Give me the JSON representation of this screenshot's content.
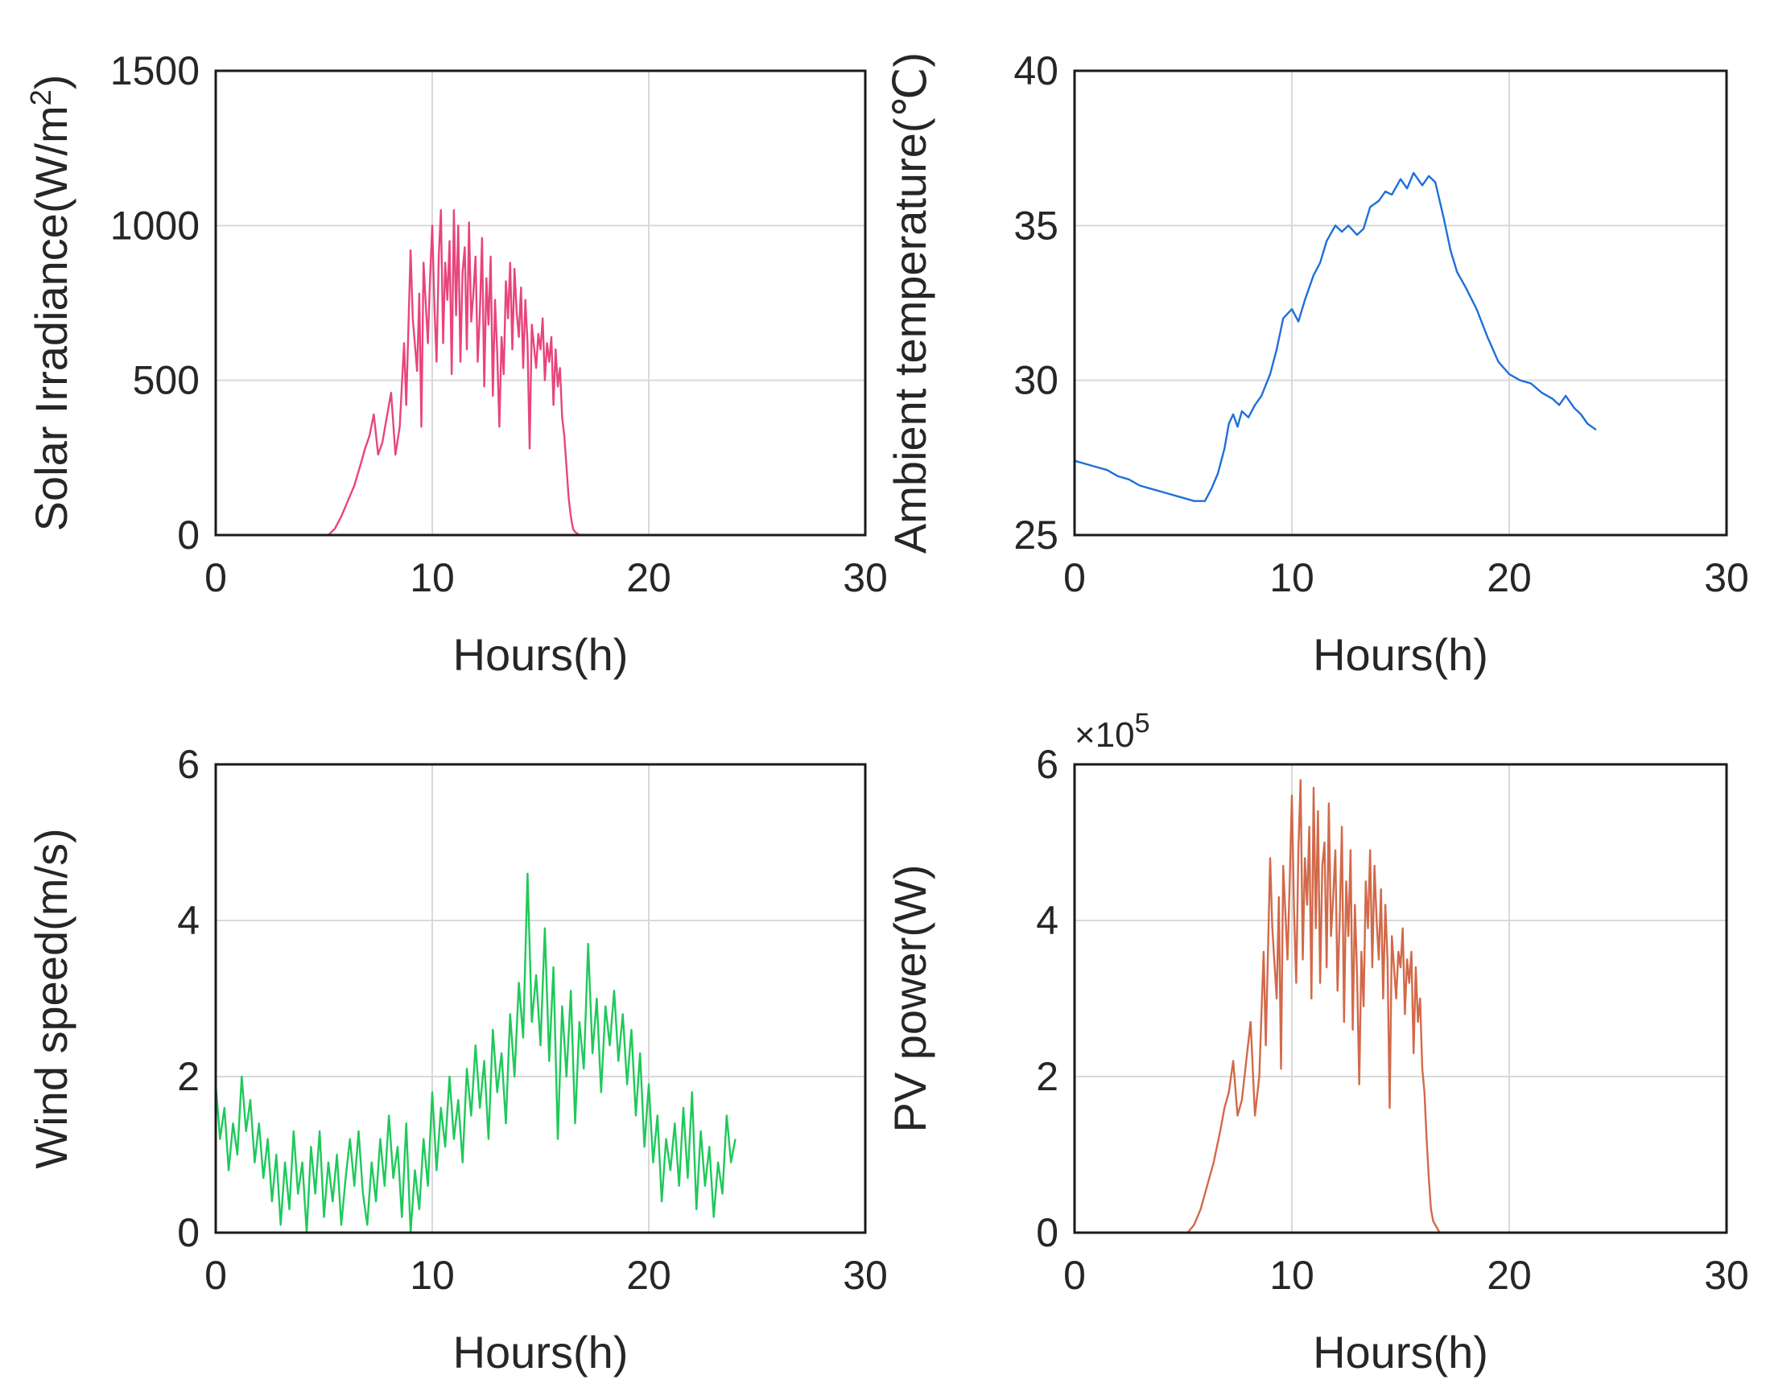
{
  "chart_data": [
    {
      "type": "line",
      "xlabel": "Hours(h)",
      "ylabel": "Solar Irradiance(W/m",
      "ylabel_sup": "2",
      "ylabel_close": ")",
      "xlim": [
        0,
        30
      ],
      "ylim": [
        0,
        1500
      ],
      "xticks": [
        0,
        10,
        20,
        30
      ],
      "yticks": [
        0,
        500,
        1000,
        1500
      ],
      "grid": true,
      "color": "#e8457a",
      "series": [
        {
          "name": "Solar Irradiance",
          "x": [
            0,
            5.2,
            5.5,
            5.8,
            6.1,
            6.4,
            6.7,
            6.9,
            7.1,
            7.3,
            7.5,
            7.7,
            7.9,
            8.1,
            8.3,
            8.5,
            8.7,
            8.8,
            9,
            9.1,
            9.3,
            9.4,
            9.5,
            9.6,
            9.8,
            9.9,
            10,
            10.1,
            10.2,
            10.3,
            10.4,
            10.5,
            10.6,
            10.7,
            10.8,
            10.9,
            11,
            11.1,
            11.2,
            11.3,
            11.4,
            11.5,
            11.6,
            11.7,
            11.8,
            11.9,
            12,
            12.1,
            12.2,
            12.3,
            12.4,
            12.5,
            12.6,
            12.7,
            12.8,
            12.9,
            13,
            13.1,
            13.2,
            13.3,
            13.4,
            13.5,
            13.6,
            13.7,
            13.8,
            13.9,
            14,
            14.1,
            14.2,
            14.3,
            14.4,
            14.5,
            14.6,
            14.8,
            14.9,
            15,
            15.1,
            15.2,
            15.3,
            15.4,
            15.5,
            15.6,
            15.7,
            15.8,
            15.9,
            16,
            16.1,
            16.2,
            16.3,
            16.4,
            16.5,
            16.6,
            16.7,
            16.8,
            16.9,
            17,
            17.1,
            17.3,
            17.5,
            17.7,
            18,
            18.3,
            19,
            24
          ],
          "y": [
            0,
            0,
            20,
            60,
            110,
            160,
            230,
            280,
            320,
            390,
            260,
            300,
            380,
            460,
            260,
            350,
            620,
            420,
            920,
            700,
            530,
            780,
            350,
            880,
            620,
            830,
            1000,
            740,
            560,
            900,
            1050,
            620,
            880,
            760,
            950,
            520,
            1050,
            710,
            1000,
            560,
            850,
            930,
            600,
            1010,
            690,
            780,
            900,
            560,
            720,
            960,
            480,
            830,
            680,
            900,
            450,
            760,
            590,
            350,
            640,
            520,
            820,
            700,
            880,
            600,
            860,
            720,
            640,
            800,
            540,
            760,
            620,
            280,
            680,
            540,
            650,
            600,
            700,
            500,
            620,
            560,
            640,
            420,
            600,
            480,
            540,
            380,
            320,
            220,
            120,
            60,
            20,
            10,
            5,
            0,
            0,
            0,
            0,
            0,
            0,
            0,
            0,
            0,
            0,
            0
          ]
        }
      ]
    },
    {
      "type": "line",
      "xlabel": "Hours(h)",
      "ylabel": "Ambient temperature(℃)",
      "xlim": [
        0,
        30
      ],
      "ylim": [
        25,
        40
      ],
      "xticks": [
        0,
        10,
        20,
        30
      ],
      "yticks": [
        25,
        30,
        35,
        40
      ],
      "grid": true,
      "color": "#1f6fd9",
      "series": [
        {
          "name": "Ambient temperature",
          "x": [
            0,
            0.5,
            1,
            1.5,
            2,
            2.5,
            3,
            3.5,
            4,
            4.5,
            5,
            5.5,
            6,
            6.3,
            6.6,
            6.9,
            7.1,
            7.3,
            7.5,
            7.7,
            8,
            8.3,
            8.6,
            9,
            9.3,
            9.6,
            10,
            10.3,
            10.6,
            11,
            11.3,
            11.6,
            12,
            12.3,
            12.6,
            13,
            13.3,
            13.6,
            14,
            14.3,
            14.6,
            15,
            15.3,
            15.6,
            16,
            16.3,
            16.6,
            17,
            17.3,
            17.6,
            18,
            18.5,
            19,
            19.5,
            20,
            20.5,
            21,
            21.5,
            22,
            22.3,
            22.6,
            23,
            23.3,
            23.6,
            24
          ],
          "y": [
            27.4,
            27.3,
            27.2,
            27.1,
            26.9,
            26.8,
            26.6,
            26.5,
            26.4,
            26.3,
            26.2,
            26.1,
            26.1,
            26.5,
            27,
            27.8,
            28.6,
            28.9,
            28.5,
            29,
            28.8,
            29.2,
            29.5,
            30.2,
            31,
            32,
            32.3,
            31.9,
            32.6,
            33.4,
            33.8,
            34.5,
            35,
            34.8,
            35,
            34.7,
            34.9,
            35.6,
            35.8,
            36.1,
            36,
            36.5,
            36.2,
            36.7,
            36.3,
            36.6,
            36.4,
            35.2,
            34.2,
            33.5,
            33,
            32.3,
            31.4,
            30.6,
            30.2,
            30,
            29.9,
            29.6,
            29.4,
            29.2,
            29.5,
            29.1,
            28.9,
            28.6,
            28.4
          ]
        }
      ]
    },
    {
      "type": "line",
      "xlabel": "Hours(h)",
      "ylabel": "Wind speed(m/s)",
      "xlim": [
        0,
        30
      ],
      "ylim": [
        0,
        6
      ],
      "xticks": [
        0,
        10,
        20,
        30
      ],
      "yticks": [
        0,
        2,
        4,
        6
      ],
      "grid": true,
      "color": "#1fc95a",
      "series": [
        {
          "name": "Wind speed",
          "x": [
            0,
            0.2,
            0.4,
            0.6,
            0.8,
            1,
            1.2,
            1.4,
            1.6,
            1.8,
            2,
            2.2,
            2.4,
            2.6,
            2.8,
            3,
            3.2,
            3.4,
            3.6,
            3.8,
            4,
            4.2,
            4.4,
            4.6,
            4.8,
            5,
            5.2,
            5.4,
            5.6,
            5.8,
            6,
            6.2,
            6.4,
            6.6,
            6.8,
            7,
            7.2,
            7.4,
            7.6,
            7.8,
            8,
            8.2,
            8.4,
            8.6,
            8.8,
            9,
            9.2,
            9.4,
            9.6,
            9.8,
            10,
            10.2,
            10.4,
            10.6,
            10.8,
            11,
            11.2,
            11.4,
            11.6,
            11.8,
            12,
            12.2,
            12.4,
            12.6,
            12.8,
            13,
            13.2,
            13.4,
            13.6,
            13.8,
            14,
            14.2,
            14.4,
            14.6,
            14.8,
            15,
            15.2,
            15.4,
            15.6,
            15.8,
            16,
            16.2,
            16.4,
            16.6,
            16.8,
            17,
            17.2,
            17.4,
            17.6,
            17.8,
            18,
            18.2,
            18.4,
            18.6,
            18.8,
            19,
            19.2,
            19.4,
            19.6,
            19.8,
            20,
            20.2,
            20.4,
            20.6,
            20.8,
            21,
            21.2,
            21.4,
            21.6,
            21.8,
            22,
            22.2,
            22.4,
            22.6,
            22.8,
            23,
            23.2,
            23.4,
            23.6,
            23.8,
            24
          ],
          "y": [
            1.9,
            1.2,
            1.6,
            0.8,
            1.4,
            1.0,
            2.0,
            1.3,
            1.7,
            0.9,
            1.4,
            0.7,
            1.2,
            0.4,
            1.0,
            0.1,
            0.9,
            0.3,
            1.3,
            0.5,
            0.9,
            0.0,
            1.1,
            0.5,
            1.3,
            0.2,
            0.9,
            0.4,
            1.0,
            0.1,
            0.7,
            1.2,
            0.6,
            1.3,
            0.5,
            0.1,
            0.9,
            0.4,
            1.2,
            0.6,
            1.5,
            0.7,
            1.1,
            0.2,
            1.4,
            0.0,
            0.8,
            0.3,
            1.2,
            0.6,
            1.8,
            0.8,
            1.6,
            1.1,
            2.0,
            1.2,
            1.7,
            0.9,
            2.1,
            1.5,
            2.4,
            1.6,
            2.2,
            1.2,
            2.6,
            1.8,
            2.3,
            1.4,
            2.8,
            2.0,
            3.2,
            2.5,
            4.6,
            2.7,
            3.3,
            2.4,
            3.9,
            2.2,
            3.4,
            1.2,
            2.9,
            2.0,
            3.1,
            1.4,
            2.7,
            2.1,
            3.7,
            2.3,
            3.0,
            1.8,
            2.9,
            2.4,
            3.1,
            2.2,
            2.8,
            1.9,
            2.6,
            1.5,
            2.3,
            1.1,
            1.9,
            0.9,
            1.5,
            0.4,
            1.2,
            0.8,
            1.4,
            0.6,
            1.6,
            0.7,
            1.8,
            0.3,
            1.3,
            0.6,
            1.1,
            0.2,
            0.9,
            0.5,
            1.5,
            0.9,
            1.2
          ]
        }
      ]
    },
    {
      "type": "line",
      "xlabel": "Hours(h)",
      "ylabel": "PV power(W)",
      "exponent": "×10",
      "exponent_power": "5",
      "xlim": [
        0,
        30
      ],
      "ylim": [
        0,
        6
      ],
      "xticks": [
        0,
        10,
        20,
        30
      ],
      "yticks": [
        0,
        2,
        4,
        6
      ],
      "grid": true,
      "color": "#d2694a",
      "series": [
        {
          "name": "PV power",
          "x": [
            0,
            5.2,
            5.5,
            5.8,
            6.1,
            6.4,
            6.7,
            6.9,
            7.1,
            7.3,
            7.5,
            7.7,
            7.9,
            8.1,
            8.3,
            8.5,
            8.7,
            8.8,
            9,
            9.1,
            9.3,
            9.4,
            9.5,
            9.6,
            9.8,
            9.9,
            10,
            10.1,
            10.2,
            10.3,
            10.4,
            10.5,
            10.6,
            10.7,
            10.8,
            10.9,
            11,
            11.1,
            11.2,
            11.3,
            11.4,
            11.5,
            11.6,
            11.7,
            11.8,
            11.9,
            12,
            12.1,
            12.2,
            12.3,
            12.4,
            12.5,
            12.6,
            12.7,
            12.8,
            12.9,
            13,
            13.1,
            13.2,
            13.3,
            13.4,
            13.5,
            13.6,
            13.7,
            13.8,
            13.9,
            14,
            14.1,
            14.2,
            14.3,
            14.4,
            14.5,
            14.6,
            14.8,
            14.9,
            15,
            15.1,
            15.2,
            15.3,
            15.4,
            15.5,
            15.6,
            15.7,
            15.8,
            15.9,
            16,
            16.1,
            16.2,
            16.3,
            16.4,
            16.5,
            16.6,
            16.7,
            16.8,
            16.9,
            17,
            17.1,
            17.3,
            17.5,
            17.7,
            18,
            18.3,
            19,
            24
          ],
          "y": [
            0,
            0,
            0.1,
            0.3,
            0.6,
            0.9,
            1.3,
            1.6,
            1.8,
            2.2,
            1.5,
            1.7,
            2.2,
            2.7,
            1.5,
            2.0,
            3.6,
            2.4,
            4.8,
            3.9,
            3.0,
            4.3,
            2.1,
            4.7,
            3.5,
            4.5,
            5.6,
            4.1,
            3.2,
            4.9,
            5.8,
            3.5,
            4.8,
            4.2,
            5.2,
            3.0,
            5.7,
            3.9,
            5.4,
            3.2,
            4.7,
            5.0,
            3.4,
            5.5,
            3.8,
            4.3,
            4.9,
            3.1,
            4.0,
            5.2,
            2.7,
            4.5,
            3.8,
            4.9,
            2.6,
            4.2,
            3.3,
            1.9,
            3.6,
            2.9,
            4.5,
            3.9,
            4.9,
            3.4,
            4.7,
            4.0,
            3.5,
            4.4,
            3.0,
            4.2,
            3.5,
            1.6,
            3.8,
            3.0,
            3.6,
            3.4,
            3.9,
            2.8,
            3.5,
            3.2,
            3.6,
            2.3,
            3.4,
            2.7,
            3.0,
            2.1,
            1.8,
            1.2,
            0.7,
            0.3,
            0.15,
            0.1,
            0.05,
            0,
            0,
            0,
            0,
            0,
            0,
            0,
            0,
            0,
            0,
            0
          ]
        }
      ]
    }
  ]
}
